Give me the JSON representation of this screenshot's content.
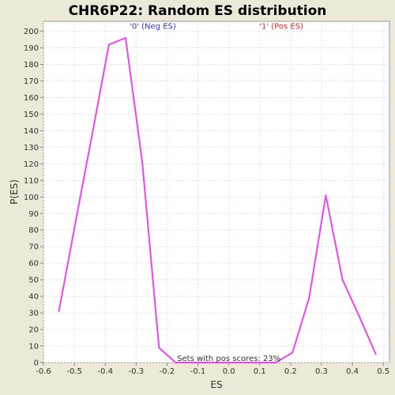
{
  "chart_data": {
    "type": "line",
    "title": "CHR6P22: Random ES distribution",
    "xlabel": "ES",
    "ylabel": "P(ES)",
    "xlim": [
      -0.6,
      0.52
    ],
    "ylim": [
      0,
      206
    ],
    "xticks": [
      -0.6,
      -0.5,
      -0.4,
      -0.3,
      -0.2,
      -0.1,
      0.0,
      0.1,
      0.2,
      0.3,
      0.4,
      0.5
    ],
    "xtick_labels": [
      "-0.6",
      "-0.5",
      "-0.4",
      "-0.3",
      "-0.2",
      "-0.1",
      "0.0",
      "0.1",
      "0.2",
      "0.3",
      "0.4",
      "0.5"
    ],
    "yticks": [
      0,
      10,
      20,
      30,
      40,
      50,
      60,
      70,
      80,
      90,
      100,
      110,
      120,
      130,
      140,
      150,
      160,
      170,
      180,
      190,
      200
    ],
    "grid": true,
    "series": [
      {
        "color": "#ee44ee",
        "x": [
          -0.55,
          -0.496,
          -0.442,
          -0.388,
          -0.334,
          -0.28,
          -0.226,
          -0.172,
          -0.118,
          -0.064,
          -0.01,
          0.044,
          0.098,
          0.152,
          0.206,
          0.26,
          0.314,
          0.368,
          0.422,
          0.476
        ],
        "y": [
          31,
          85,
          138,
          192,
          196,
          121,
          9,
          0,
          0,
          0,
          0,
          0,
          0,
          0,
          6,
          39,
          101,
          50,
          28,
          5
        ]
      }
    ],
    "annotations": [
      {
        "text": "'0' (Neg ES)",
        "color": "#3333cc",
        "x": -0.246,
        "y": 200
      },
      {
        "text": "'1' (Pos ES)",
        "color": "#dd2222",
        "x": 0.17,
        "y": 200
      },
      {
        "text": "Sets with pos scores: 23%",
        "color": "#333333",
        "x": 0.0,
        "y": 0
      }
    ]
  }
}
